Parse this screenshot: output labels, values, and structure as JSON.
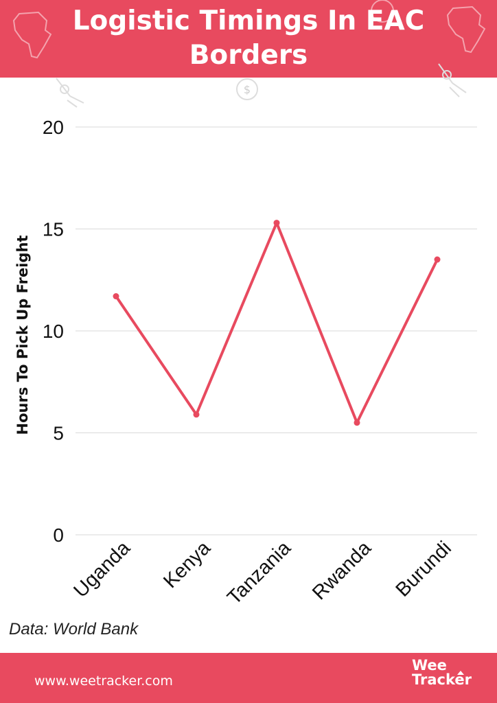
{
  "header": {
    "title": "Logistic Timings In EAC\nBorders"
  },
  "source_note": "Data: World Bank",
  "footer": {
    "url": "www.weetracker.com",
    "logo_line1": "Wee",
    "logo_line2": "Tracker"
  },
  "colors": {
    "accent": "#e84a5f",
    "line": "#e84a5f",
    "grid": "#d9d9d9",
    "text": "#111111"
  },
  "icons": [
    "africa-map-icon",
    "rocket-icon",
    "coin-icon"
  ],
  "chart_data": {
    "type": "line",
    "title": "Logistic Timings In EAC Borders",
    "xlabel": "",
    "ylabel": "Hours To Pick Up Freight",
    "categories": [
      "Uganda",
      "Kenya",
      "Tanzania",
      "Rwanda",
      "Burundi"
    ],
    "series": [
      {
        "values": [
          11.7,
          5.9,
          15.3,
          5.5,
          13.5
        ]
      }
    ],
    "ylim": [
      0,
      20
    ],
    "yticks": [
      0,
      5,
      10,
      15,
      20
    ],
    "grid": true,
    "legend": "none"
  }
}
